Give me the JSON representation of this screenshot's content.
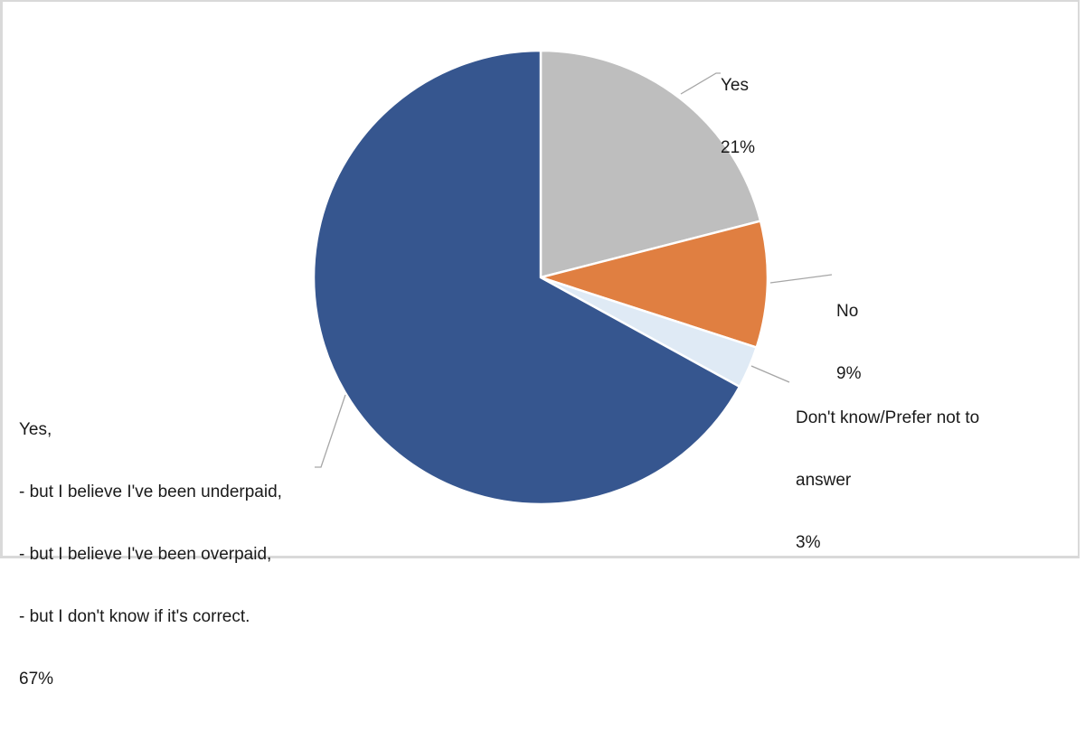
{
  "chart_data": {
    "type": "pie",
    "title": "",
    "start_angle": "12 o'clock, clockwise",
    "categories": [
      "Yes",
      "No",
      "Don't know/Prefer not to answer",
      "Yes, - but I believe I've been underpaid, - but I believe I've been overpaid, - but I don't know if it's correct."
    ],
    "values": [
      21,
      9,
      3,
      67
    ],
    "unit": "%",
    "colors": [
      "#BEBEBE",
      "#E07F41",
      "#DFEAF5",
      "#36568F"
    ],
    "legend": "none (data labels with leader lines)"
  },
  "labels": {
    "yes": {
      "name": "Yes",
      "pct": "21%"
    },
    "no": {
      "name": "No",
      "pct": "9%"
    },
    "dontknow": {
      "line1": "Don't know/Prefer not to",
      "line2": "answer",
      "pct": "3%"
    },
    "yesbut": {
      "line1": "Yes,",
      "line2": "- but I believe I've been underpaid,",
      "line3": "- but I believe I've been overpaid,",
      "line4": "- but I don't know if it's correct.",
      "pct": "67%"
    }
  }
}
